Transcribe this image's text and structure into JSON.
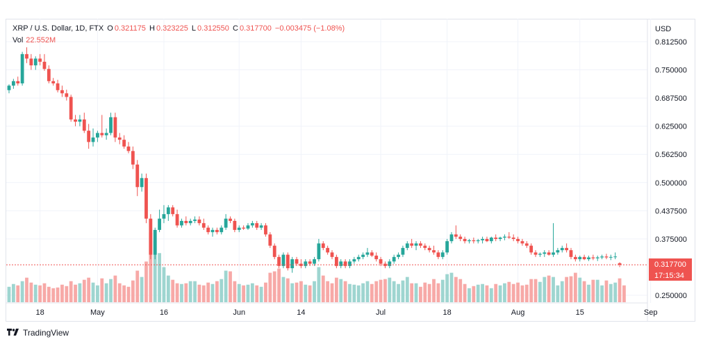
{
  "legend": {
    "symbol": "XRP / U.S. Dollar, 1D, FTX",
    "open_label": "O",
    "open": "0.321175",
    "high_label": "H",
    "high": "0.323225",
    "low_label": "L",
    "low": "0.312550",
    "close_label": "C",
    "close": "0.317700",
    "change": "−0.003475 (−1.08%)",
    "vol_label": "Vol",
    "vol": "22.552M"
  },
  "currency": "USD",
  "last_price": "0.317700",
  "countdown": "17:15:34",
  "brand": "TradingView",
  "colors": {
    "up": "#26a69a",
    "down": "#ef5350",
    "up_vol": "#9ed5d0",
    "down_vol": "#f7a9a7",
    "grid": "#f0f3fa",
    "price_line": "#ef5350"
  },
  "chart_data": {
    "type": "candlestick",
    "x_labels": [
      "18",
      "May",
      "16",
      "Jun",
      "14",
      "Jul",
      "18",
      "Aug",
      "15",
      "Sep"
    ],
    "x_label_day_index": [
      7,
      20,
      35,
      52,
      66,
      84,
      99,
      115,
      129,
      145
    ],
    "y_ticks": [
      "0.812500",
      "0.750000",
      "0.687500",
      "0.625000",
      "0.562500",
      "0.500000",
      "0.437500",
      "0.375000",
      "0.250000"
    ],
    "ylim": [
      0.25,
      0.8125
    ],
    "candles": [
      [
        0.705,
        0.718,
        0.698,
        0.715
      ],
      [
        0.715,
        0.73,
        0.708,
        0.725
      ],
      [
        0.725,
        0.735,
        0.715,
        0.72
      ],
      [
        0.72,
        0.79,
        0.715,
        0.785
      ],
      [
        0.785,
        0.8,
        0.765,
        0.775
      ],
      [
        0.775,
        0.785,
        0.75,
        0.76
      ],
      [
        0.76,
        0.78,
        0.75,
        0.775
      ],
      [
        0.775,
        0.785,
        0.76,
        0.768
      ],
      [
        0.768,
        0.785,
        0.748,
        0.752
      ],
      [
        0.752,
        0.76,
        0.72,
        0.725
      ],
      [
        0.725,
        0.732,
        0.715,
        0.72
      ],
      [
        0.72,
        0.728,
        0.7,
        0.705
      ],
      [
        0.705,
        0.715,
        0.69,
        0.698
      ],
      [
        0.698,
        0.706,
        0.682,
        0.69
      ],
      [
        0.69,
        0.695,
        0.635,
        0.64
      ],
      [
        0.64,
        0.65,
        0.625,
        0.635
      ],
      [
        0.635,
        0.65,
        0.625,
        0.64
      ],
      [
        0.64,
        0.655,
        0.61,
        0.615
      ],
      [
        0.615,
        0.63,
        0.575,
        0.59
      ],
      [
        0.59,
        0.62,
        0.58,
        0.6
      ],
      [
        0.6,
        0.615,
        0.59,
        0.61
      ],
      [
        0.61,
        0.65,
        0.6,
        0.605
      ],
      [
        0.605,
        0.62,
        0.595,
        0.61
      ],
      [
        0.61,
        0.655,
        0.605,
        0.645
      ],
      [
        0.645,
        0.655,
        0.59,
        0.6
      ],
      [
        0.6,
        0.61,
        0.585,
        0.595
      ],
      [
        0.595,
        0.605,
        0.575,
        0.58
      ],
      [
        0.58,
        0.59,
        0.565,
        0.57
      ],
      [
        0.57,
        0.58,
        0.53,
        0.54
      ],
      [
        0.54,
        0.55,
        0.47,
        0.49
      ],
      [
        0.49,
        0.52,
        0.48,
        0.51
      ],
      [
        0.51,
        0.52,
        0.41,
        0.42
      ],
      [
        0.42,
        0.43,
        0.33,
        0.34
      ],
      [
        0.34,
        0.4,
        0.33,
        0.395
      ],
      [
        0.395,
        0.44,
        0.39,
        0.42
      ],
      [
        0.42,
        0.45,
        0.41,
        0.43
      ],
      [
        0.43,
        0.45,
        0.415,
        0.445
      ],
      [
        0.445,
        0.45,
        0.425,
        0.43
      ],
      [
        0.43,
        0.44,
        0.4,
        0.405
      ],
      [
        0.405,
        0.42,
        0.4,
        0.415
      ],
      [
        0.415,
        0.425,
        0.405,
        0.41
      ],
      [
        0.41,
        0.42,
        0.405,
        0.415
      ],
      [
        0.415,
        0.425,
        0.41,
        0.418
      ],
      [
        0.418,
        0.425,
        0.405,
        0.41
      ],
      [
        0.41,
        0.42,
        0.395,
        0.4
      ],
      [
        0.4,
        0.405,
        0.385,
        0.39
      ],
      [
        0.39,
        0.4,
        0.38,
        0.395
      ],
      [
        0.395,
        0.4,
        0.385,
        0.39
      ],
      [
        0.39,
        0.405,
        0.385,
        0.4
      ],
      [
        0.4,
        0.43,
        0.395,
        0.42
      ],
      [
        0.42,
        0.425,
        0.41,
        0.415
      ],
      [
        0.415,
        0.42,
        0.39,
        0.395
      ],
      [
        0.395,
        0.405,
        0.39,
        0.4
      ],
      [
        0.4,
        0.405,
        0.395,
        0.398
      ],
      [
        0.398,
        0.41,
        0.395,
        0.405
      ],
      [
        0.405,
        0.415,
        0.4,
        0.41
      ],
      [
        0.41,
        0.415,
        0.395,
        0.4
      ],
      [
        0.4,
        0.41,
        0.395,
        0.405
      ],
      [
        0.405,
        0.41,
        0.38,
        0.385
      ],
      [
        0.385,
        0.39,
        0.355,
        0.36
      ],
      [
        0.36,
        0.365,
        0.33,
        0.335
      ],
      [
        0.335,
        0.34,
        0.31,
        0.315
      ],
      [
        0.315,
        0.345,
        0.31,
        0.34
      ],
      [
        0.34,
        0.345,
        0.305,
        0.31
      ],
      [
        0.31,
        0.335,
        0.3,
        0.33
      ],
      [
        0.33,
        0.335,
        0.315,
        0.32
      ],
      [
        0.32,
        0.33,
        0.31,
        0.315
      ],
      [
        0.315,
        0.33,
        0.31,
        0.325
      ],
      [
        0.325,
        0.33,
        0.315,
        0.32
      ],
      [
        0.32,
        0.335,
        0.315,
        0.33
      ],
      [
        0.33,
        0.375,
        0.325,
        0.365
      ],
      [
        0.365,
        0.37,
        0.35,
        0.355
      ],
      [
        0.355,
        0.36,
        0.34,
        0.345
      ],
      [
        0.345,
        0.35,
        0.33,
        0.335
      ],
      [
        0.335,
        0.34,
        0.31,
        0.315
      ],
      [
        0.315,
        0.33,
        0.31,
        0.325
      ],
      [
        0.325,
        0.33,
        0.31,
        0.315
      ],
      [
        0.315,
        0.33,
        0.31,
        0.325
      ],
      [
        0.325,
        0.335,
        0.32,
        0.33
      ],
      [
        0.33,
        0.34,
        0.325,
        0.335
      ],
      [
        0.335,
        0.345,
        0.33,
        0.34
      ],
      [
        0.34,
        0.355,
        0.335,
        0.345
      ],
      [
        0.345,
        0.35,
        0.335,
        0.338
      ],
      [
        0.338,
        0.345,
        0.325,
        0.33
      ],
      [
        0.33,
        0.335,
        0.315,
        0.32
      ],
      [
        0.32,
        0.325,
        0.31,
        0.315
      ],
      [
        0.315,
        0.33,
        0.31,
        0.325
      ],
      [
        0.325,
        0.34,
        0.32,
        0.335
      ],
      [
        0.335,
        0.345,
        0.33,
        0.34
      ],
      [
        0.34,
        0.36,
        0.335,
        0.355
      ],
      [
        0.355,
        0.37,
        0.35,
        0.365
      ],
      [
        0.365,
        0.375,
        0.355,
        0.36
      ],
      [
        0.36,
        0.37,
        0.35,
        0.365
      ],
      [
        0.365,
        0.37,
        0.355,
        0.36
      ],
      [
        0.36,
        0.365,
        0.35,
        0.355
      ],
      [
        0.355,
        0.36,
        0.345,
        0.35
      ],
      [
        0.35,
        0.36,
        0.34,
        0.345
      ],
      [
        0.345,
        0.35,
        0.33,
        0.335
      ],
      [
        0.335,
        0.35,
        0.33,
        0.345
      ],
      [
        0.345,
        0.375,
        0.34,
        0.37
      ],
      [
        0.37,
        0.39,
        0.365,
        0.385
      ],
      [
        0.385,
        0.405,
        0.375,
        0.38
      ],
      [
        0.38,
        0.385,
        0.37,
        0.375
      ],
      [
        0.375,
        0.38,
        0.365,
        0.37
      ],
      [
        0.37,
        0.375,
        0.365,
        0.372
      ],
      [
        0.372,
        0.378,
        0.365,
        0.37
      ],
      [
        0.37,
        0.375,
        0.365,
        0.372
      ],
      [
        0.372,
        0.38,
        0.365,
        0.375
      ],
      [
        0.375,
        0.38,
        0.368,
        0.37
      ],
      [
        0.37,
        0.38,
        0.365,
        0.378
      ],
      [
        0.378,
        0.385,
        0.37,
        0.375
      ],
      [
        0.375,
        0.38,
        0.37,
        0.378
      ],
      [
        0.378,
        0.385,
        0.372,
        0.38
      ],
      [
        0.38,
        0.39,
        0.375,
        0.378
      ],
      [
        0.378,
        0.385,
        0.37,
        0.375
      ],
      [
        0.375,
        0.38,
        0.365,
        0.37
      ],
      [
        0.37,
        0.375,
        0.36,
        0.365
      ],
      [
        0.365,
        0.37,
        0.355,
        0.36
      ],
      [
        0.36,
        0.365,
        0.34,
        0.345
      ],
      [
        0.345,
        0.35,
        0.335,
        0.34
      ],
      [
        0.34,
        0.345,
        0.335,
        0.342
      ],
      [
        0.342,
        0.35,
        0.335,
        0.345
      ],
      [
        0.345,
        0.35,
        0.338,
        0.34
      ],
      [
        0.34,
        0.41,
        0.335,
        0.345
      ],
      [
        0.345,
        0.355,
        0.34,
        0.35
      ],
      [
        0.35,
        0.36,
        0.345,
        0.355
      ],
      [
        0.355,
        0.365,
        0.345,
        0.35
      ],
      [
        0.35,
        0.355,
        0.33,
        0.335
      ],
      [
        0.335,
        0.34,
        0.325,
        0.33
      ],
      [
        0.33,
        0.338,
        0.325,
        0.335
      ],
      [
        0.335,
        0.34,
        0.328,
        0.33
      ],
      [
        0.33,
        0.338,
        0.326,
        0.334
      ],
      [
        0.334,
        0.34,
        0.328,
        0.332
      ],
      [
        0.332,
        0.338,
        0.326,
        0.334
      ],
      [
        0.334,
        0.34,
        0.33,
        0.336
      ],
      [
        0.336,
        0.342,
        0.33,
        0.334
      ],
      [
        0.334,
        0.34,
        0.328,
        0.335
      ],
      [
        0.335,
        0.345,
        0.33,
        0.336
      ],
      [
        0.321175,
        0.323225,
        0.31255,
        0.3177
      ]
    ],
    "volumes": [
      0.22,
      0.26,
      0.24,
      0.3,
      0.35,
      0.28,
      0.25,
      0.24,
      0.27,
      0.22,
      0.2,
      0.21,
      0.25,
      0.23,
      0.3,
      0.25,
      0.27,
      0.32,
      0.35,
      0.28,
      0.24,
      0.34,
      0.27,
      0.33,
      0.38,
      0.27,
      0.24,
      0.22,
      0.31,
      0.45,
      0.36,
      0.58,
      0.99,
      0.88,
      0.7,
      0.5,
      0.38,
      0.32,
      0.27,
      0.26,
      0.27,
      0.3,
      0.3,
      0.25,
      0.24,
      0.28,
      0.26,
      0.3,
      0.33,
      0.45,
      0.44,
      0.3,
      0.26,
      0.24,
      0.25,
      0.27,
      0.24,
      0.22,
      0.28,
      0.42,
      0.44,
      0.48,
      0.36,
      0.34,
      0.27,
      0.28,
      0.3,
      0.25,
      0.24,
      0.3,
      0.5,
      0.38,
      0.3,
      0.27,
      0.35,
      0.33,
      0.3,
      0.26,
      0.25,
      0.24,
      0.27,
      0.3,
      0.26,
      0.3,
      0.32,
      0.33,
      0.35,
      0.3,
      0.26,
      0.31,
      0.36,
      0.27,
      0.27,
      0.22,
      0.28,
      0.26,
      0.33,
      0.27,
      0.32,
      0.4,
      0.42,
      0.36,
      0.33,
      0.26,
      0.2,
      0.23,
      0.25,
      0.26,
      0.24,
      0.2,
      0.26,
      0.24,
      0.27,
      0.29,
      0.26,
      0.28,
      0.24,
      0.25,
      0.33,
      0.33,
      0.29,
      0.36,
      0.38,
      0.36,
      0.24,
      0.3,
      0.36,
      0.37,
      0.42,
      0.35,
      0.3,
      0.25,
      0.32,
      0.32,
      0.24,
      0.31,
      0.26,
      0.28,
      0.34,
      0.24
    ]
  }
}
